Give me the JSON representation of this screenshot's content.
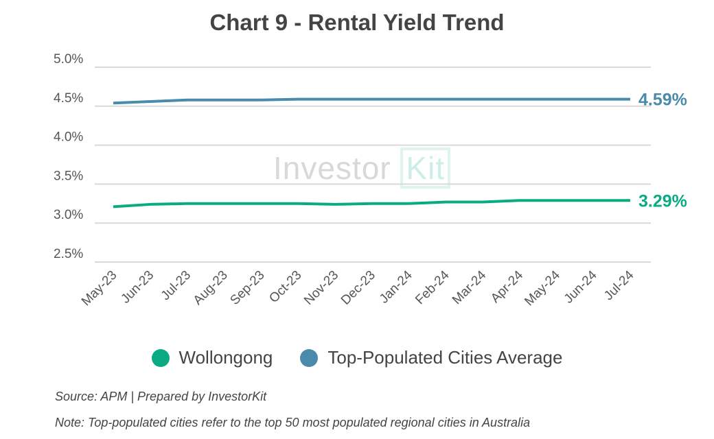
{
  "chart_data": {
    "type": "line",
    "title": "Chart 9 - Rental Yield Trend",
    "categories": [
      "May-23",
      "Jun-23",
      "Jul-23",
      "Aug-23",
      "Sep-23",
      "Oct-23",
      "Nov-23",
      "Dec-23",
      "Jan-24",
      "Feb-24",
      "Mar-24",
      "Apr-24",
      "May-24",
      "Jun-24",
      "Jul-24"
    ],
    "yticks": [
      "2.5%",
      "3.0%",
      "3.5%",
      "4.0%",
      "4.5%",
      "5.0%"
    ],
    "ylim": [
      2.5,
      5.0
    ],
    "grid": true,
    "legend_position": "bottom",
    "series": [
      {
        "name": "Wollongong",
        "color": "#0aab83",
        "end_label": "3.29%",
        "values": [
          3.21,
          3.24,
          3.25,
          3.25,
          3.25,
          3.25,
          3.24,
          3.25,
          3.25,
          3.27,
          3.27,
          3.29,
          3.29,
          3.29,
          3.29
        ]
      },
      {
        "name": "Top-Populated Cities Average",
        "color": "#4a8aab",
        "end_label": "4.59%",
        "values": [
          4.54,
          4.56,
          4.58,
          4.58,
          4.58,
          4.59,
          4.59,
          4.59,
          4.59,
          4.59,
          4.59,
          4.59,
          4.59,
          4.59,
          4.59
        ]
      }
    ]
  },
  "watermark": {
    "text1": "Investor",
    "text2": "Kit"
  },
  "source": "Source: APM | Prepared by InvestorKit",
  "note": "Note: Top-populated cities refer to the top 50 most populated regional cities in Australia"
}
